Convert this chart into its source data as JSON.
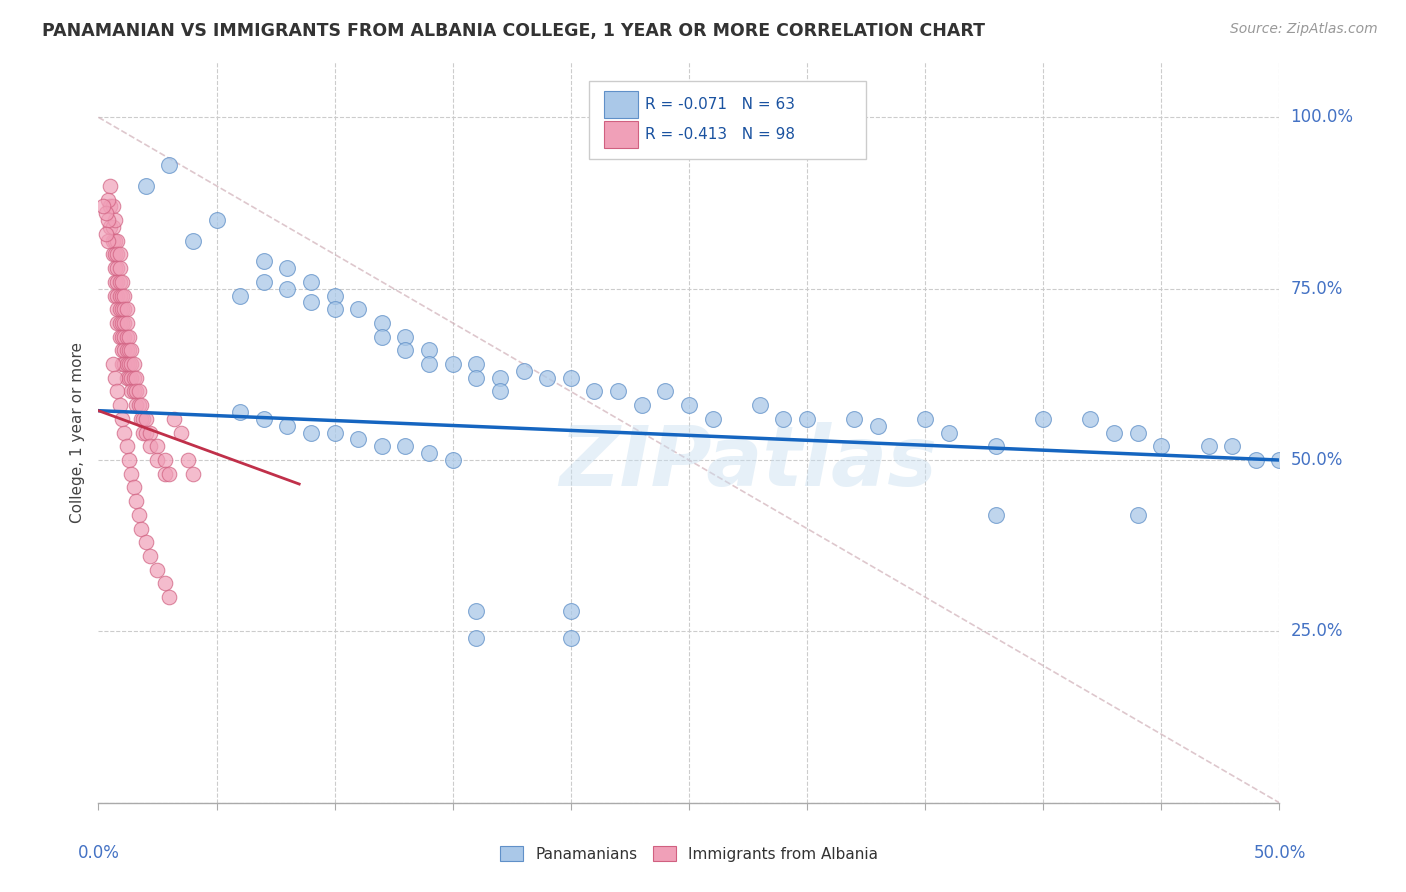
{
  "title": "PANAMANIAN VS IMMIGRANTS FROM ALBANIA COLLEGE, 1 YEAR OR MORE CORRELATION CHART",
  "source_text": "Source: ZipAtlas.com",
  "xmin": 0.0,
  "xmax": 0.5,
  "ymin": 0.0,
  "ymax": 1.08,
  "ylabel_ticks": [
    0.0,
    0.25,
    0.5,
    0.75,
    1.0
  ],
  "ylabel_labels": [
    "",
    "25.0%",
    "50.0%",
    "75.0%",
    "100.0%"
  ],
  "blue_trend_x": [
    0.0,
    0.5
  ],
  "blue_trend_y": [
    0.572,
    0.5
  ],
  "pink_trend_x": [
    0.0,
    0.085
  ],
  "pink_trend_y": [
    0.572,
    0.465
  ],
  "ref_line_x": [
    0.0,
    0.5
  ],
  "ref_line_y": [
    1.0,
    0.0
  ],
  "watermark": "ZIPatlas",
  "background_color": "#ffffff",
  "grid_color": "#cccccc",
  "blue_dot_color": "#aac8e8",
  "blue_dot_edge": "#6090c8",
  "pink_dot_color": "#f0a0b8",
  "pink_dot_edge": "#d06080",
  "trend_blue_color": "#1565C0",
  "trend_pink_color": "#c0304a",
  "legend_label_1": "Panamanians",
  "legend_label_2": "Immigrants from Albania",
  "blue_scatter": [
    [
      0.02,
      0.9
    ],
    [
      0.03,
      0.93
    ],
    [
      0.04,
      0.82
    ],
    [
      0.05,
      0.85
    ],
    [
      0.06,
      0.74
    ],
    [
      0.07,
      0.79
    ],
    [
      0.07,
      0.76
    ],
    [
      0.08,
      0.78
    ],
    [
      0.08,
      0.75
    ],
    [
      0.09,
      0.76
    ],
    [
      0.09,
      0.73
    ],
    [
      0.1,
      0.74
    ],
    [
      0.1,
      0.72
    ],
    [
      0.11,
      0.72
    ],
    [
      0.12,
      0.7
    ],
    [
      0.12,
      0.68
    ],
    [
      0.13,
      0.68
    ],
    [
      0.13,
      0.66
    ],
    [
      0.14,
      0.66
    ],
    [
      0.14,
      0.64
    ],
    [
      0.15,
      0.64
    ],
    [
      0.16,
      0.64
    ],
    [
      0.16,
      0.62
    ],
    [
      0.17,
      0.62
    ],
    [
      0.17,
      0.6
    ],
    [
      0.18,
      0.63
    ],
    [
      0.19,
      0.62
    ],
    [
      0.2,
      0.62
    ],
    [
      0.21,
      0.6
    ],
    [
      0.22,
      0.6
    ],
    [
      0.23,
      0.58
    ],
    [
      0.24,
      0.6
    ],
    [
      0.25,
      0.58
    ],
    [
      0.26,
      0.56
    ],
    [
      0.28,
      0.58
    ],
    [
      0.29,
      0.56
    ],
    [
      0.3,
      0.56
    ],
    [
      0.32,
      0.56
    ],
    [
      0.33,
      0.55
    ],
    [
      0.35,
      0.56
    ],
    [
      0.36,
      0.54
    ],
    [
      0.38,
      0.52
    ],
    [
      0.4,
      0.56
    ],
    [
      0.42,
      0.56
    ],
    [
      0.43,
      0.54
    ],
    [
      0.44,
      0.54
    ],
    [
      0.45,
      0.52
    ],
    [
      0.47,
      0.52
    ],
    [
      0.48,
      0.52
    ],
    [
      0.49,
      0.5
    ],
    [
      0.5,
      0.5
    ],
    [
      0.06,
      0.57
    ],
    [
      0.07,
      0.56
    ],
    [
      0.08,
      0.55
    ],
    [
      0.09,
      0.54
    ],
    [
      0.1,
      0.54
    ],
    [
      0.11,
      0.53
    ],
    [
      0.12,
      0.52
    ],
    [
      0.13,
      0.52
    ],
    [
      0.14,
      0.51
    ],
    [
      0.15,
      0.5
    ],
    [
      0.38,
      0.42
    ],
    [
      0.44,
      0.42
    ],
    [
      0.16,
      0.28
    ],
    [
      0.2,
      0.28
    ],
    [
      0.16,
      0.24
    ],
    [
      0.2,
      0.24
    ]
  ],
  "pink_scatter": [
    [
      0.005,
      0.9
    ],
    [
      0.005,
      0.87
    ],
    [
      0.005,
      0.84
    ],
    [
      0.006,
      0.87
    ],
    [
      0.006,
      0.84
    ],
    [
      0.006,
      0.82
    ],
    [
      0.006,
      0.8
    ],
    [
      0.007,
      0.85
    ],
    [
      0.007,
      0.82
    ],
    [
      0.007,
      0.8
    ],
    [
      0.007,
      0.78
    ],
    [
      0.007,
      0.76
    ],
    [
      0.007,
      0.74
    ],
    [
      0.008,
      0.82
    ],
    [
      0.008,
      0.8
    ],
    [
      0.008,
      0.78
    ],
    [
      0.008,
      0.76
    ],
    [
      0.008,
      0.74
    ],
    [
      0.008,
      0.72
    ],
    [
      0.008,
      0.7
    ],
    [
      0.009,
      0.8
    ],
    [
      0.009,
      0.78
    ],
    [
      0.009,
      0.76
    ],
    [
      0.009,
      0.74
    ],
    [
      0.009,
      0.72
    ],
    [
      0.009,
      0.7
    ],
    [
      0.009,
      0.68
    ],
    [
      0.01,
      0.76
    ],
    [
      0.01,
      0.74
    ],
    [
      0.01,
      0.72
    ],
    [
      0.01,
      0.7
    ],
    [
      0.01,
      0.68
    ],
    [
      0.01,
      0.66
    ],
    [
      0.01,
      0.64
    ],
    [
      0.011,
      0.74
    ],
    [
      0.011,
      0.72
    ],
    [
      0.011,
      0.7
    ],
    [
      0.011,
      0.68
    ],
    [
      0.011,
      0.66
    ],
    [
      0.011,
      0.64
    ],
    [
      0.012,
      0.72
    ],
    [
      0.012,
      0.7
    ],
    [
      0.012,
      0.68
    ],
    [
      0.012,
      0.66
    ],
    [
      0.012,
      0.64
    ],
    [
      0.012,
      0.62
    ],
    [
      0.013,
      0.68
    ],
    [
      0.013,
      0.66
    ],
    [
      0.013,
      0.64
    ],
    [
      0.013,
      0.62
    ],
    [
      0.014,
      0.66
    ],
    [
      0.014,
      0.64
    ],
    [
      0.014,
      0.62
    ],
    [
      0.014,
      0.6
    ],
    [
      0.015,
      0.64
    ],
    [
      0.015,
      0.62
    ],
    [
      0.015,
      0.6
    ],
    [
      0.016,
      0.62
    ],
    [
      0.016,
      0.6
    ],
    [
      0.016,
      0.58
    ],
    [
      0.017,
      0.6
    ],
    [
      0.017,
      0.58
    ],
    [
      0.018,
      0.58
    ],
    [
      0.018,
      0.56
    ],
    [
      0.019,
      0.56
    ],
    [
      0.019,
      0.54
    ],
    [
      0.02,
      0.56
    ],
    [
      0.02,
      0.54
    ],
    [
      0.022,
      0.54
    ],
    [
      0.022,
      0.52
    ],
    [
      0.025,
      0.52
    ],
    [
      0.025,
      0.5
    ],
    [
      0.028,
      0.5
    ],
    [
      0.028,
      0.48
    ],
    [
      0.03,
      0.48
    ],
    [
      0.032,
      0.56
    ],
    [
      0.035,
      0.54
    ],
    [
      0.038,
      0.5
    ],
    [
      0.04,
      0.48
    ],
    [
      0.004,
      0.88
    ],
    [
      0.004,
      0.85
    ],
    [
      0.004,
      0.82
    ],
    [
      0.003,
      0.86
    ],
    [
      0.003,
      0.83
    ],
    [
      0.002,
      0.87
    ],
    [
      0.006,
      0.64
    ],
    [
      0.007,
      0.62
    ],
    [
      0.008,
      0.6
    ],
    [
      0.009,
      0.58
    ],
    [
      0.01,
      0.56
    ],
    [
      0.011,
      0.54
    ],
    [
      0.012,
      0.52
    ],
    [
      0.013,
      0.5
    ],
    [
      0.014,
      0.48
    ],
    [
      0.015,
      0.46
    ],
    [
      0.016,
      0.44
    ],
    [
      0.017,
      0.42
    ],
    [
      0.018,
      0.4
    ],
    [
      0.02,
      0.38
    ],
    [
      0.022,
      0.36
    ],
    [
      0.025,
      0.34
    ],
    [
      0.028,
      0.32
    ],
    [
      0.03,
      0.3
    ]
  ]
}
